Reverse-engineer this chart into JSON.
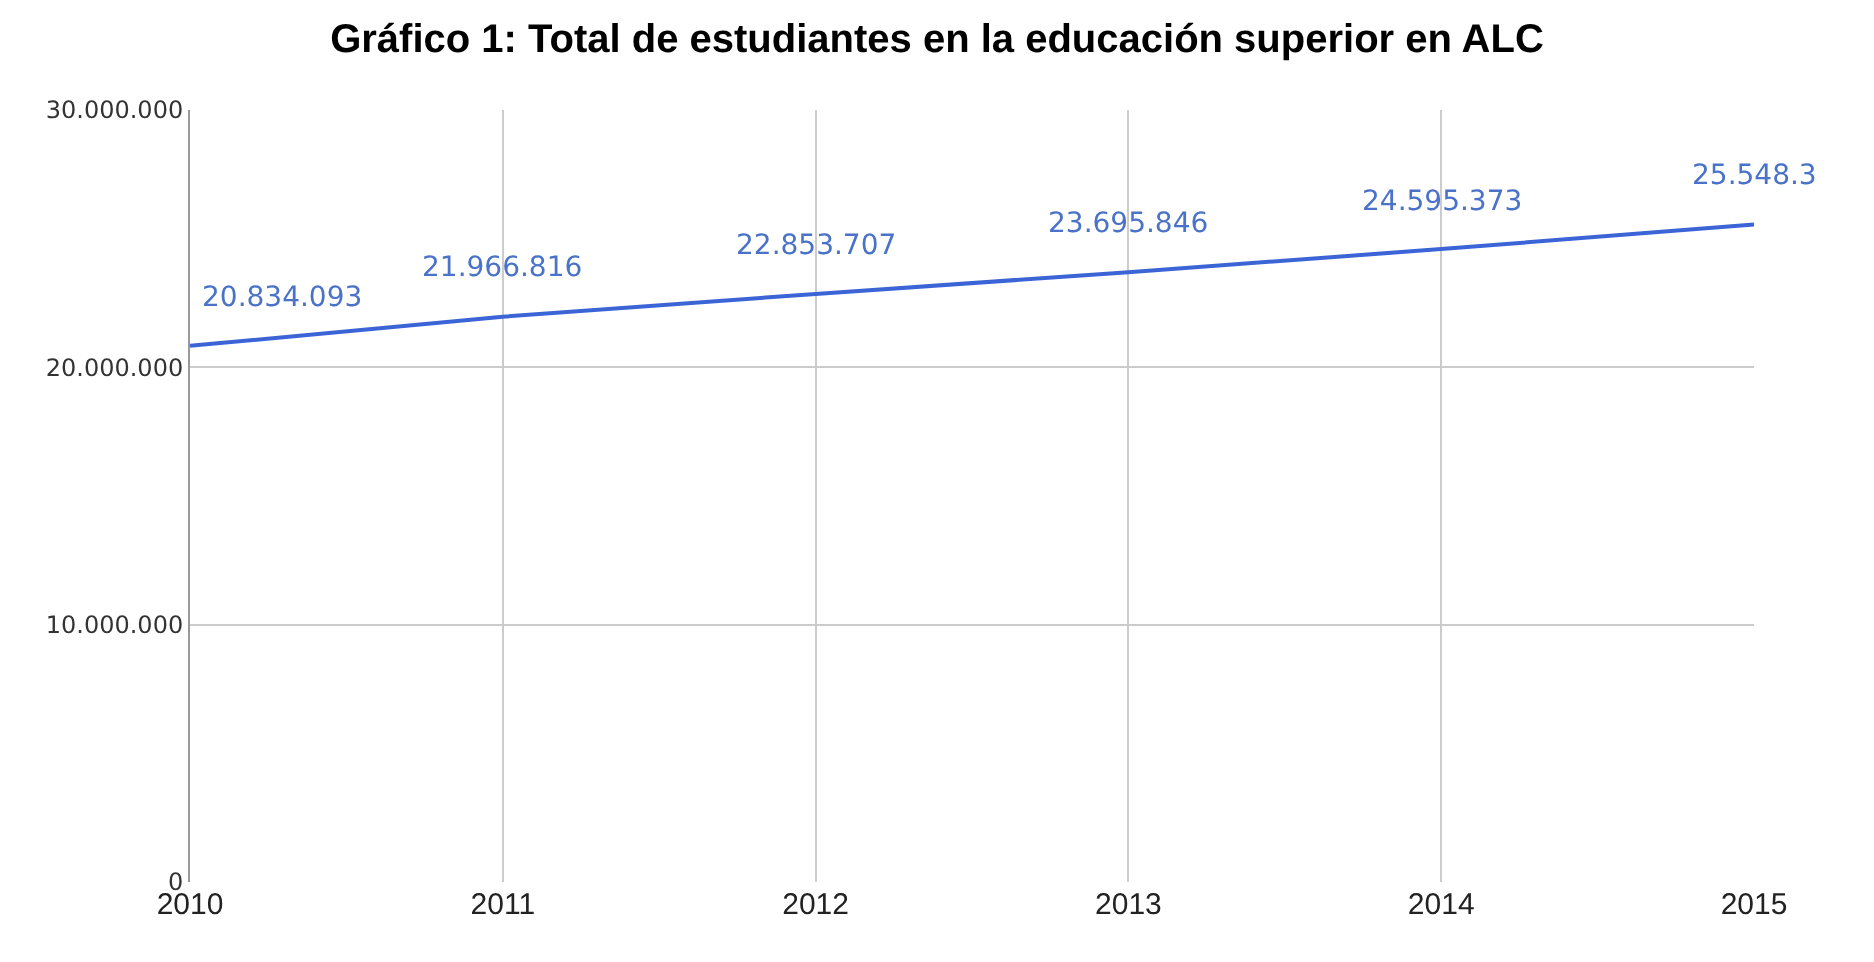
{
  "chart_data": {
    "type": "line",
    "title": "Gráfico 1: Total de estudiantes en la educación superior en ALC",
    "x": [
      2010,
      2011,
      2012,
      2013,
      2014,
      2015
    ],
    "values": [
      20834093,
      21966816,
      22853707,
      23695846,
      24595373,
      25548300
    ],
    "value_labels": [
      "20.834.093",
      "21.966.816",
      "22.853.707",
      "23.695.846",
      "24.595.373",
      "25.548.3"
    ],
    "color": "#3b64d6",
    "xlim": [
      2010,
      2015
    ],
    "xticks": [
      2010,
      2011,
      2012,
      2013,
      2014,
      2015
    ],
    "ylim": [
      0,
      30000000
    ],
    "yticks": [
      {
        "value": 0,
        "label": "0"
      },
      {
        "value": 10000000,
        "label": "10.000.000"
      },
      {
        "value": 20000000,
        "label": "20.000.000"
      },
      {
        "value": 30000000,
        "label": "30.000.000"
      }
    ],
    "grid": true,
    "marker": "none",
    "line_style": "solid"
  }
}
